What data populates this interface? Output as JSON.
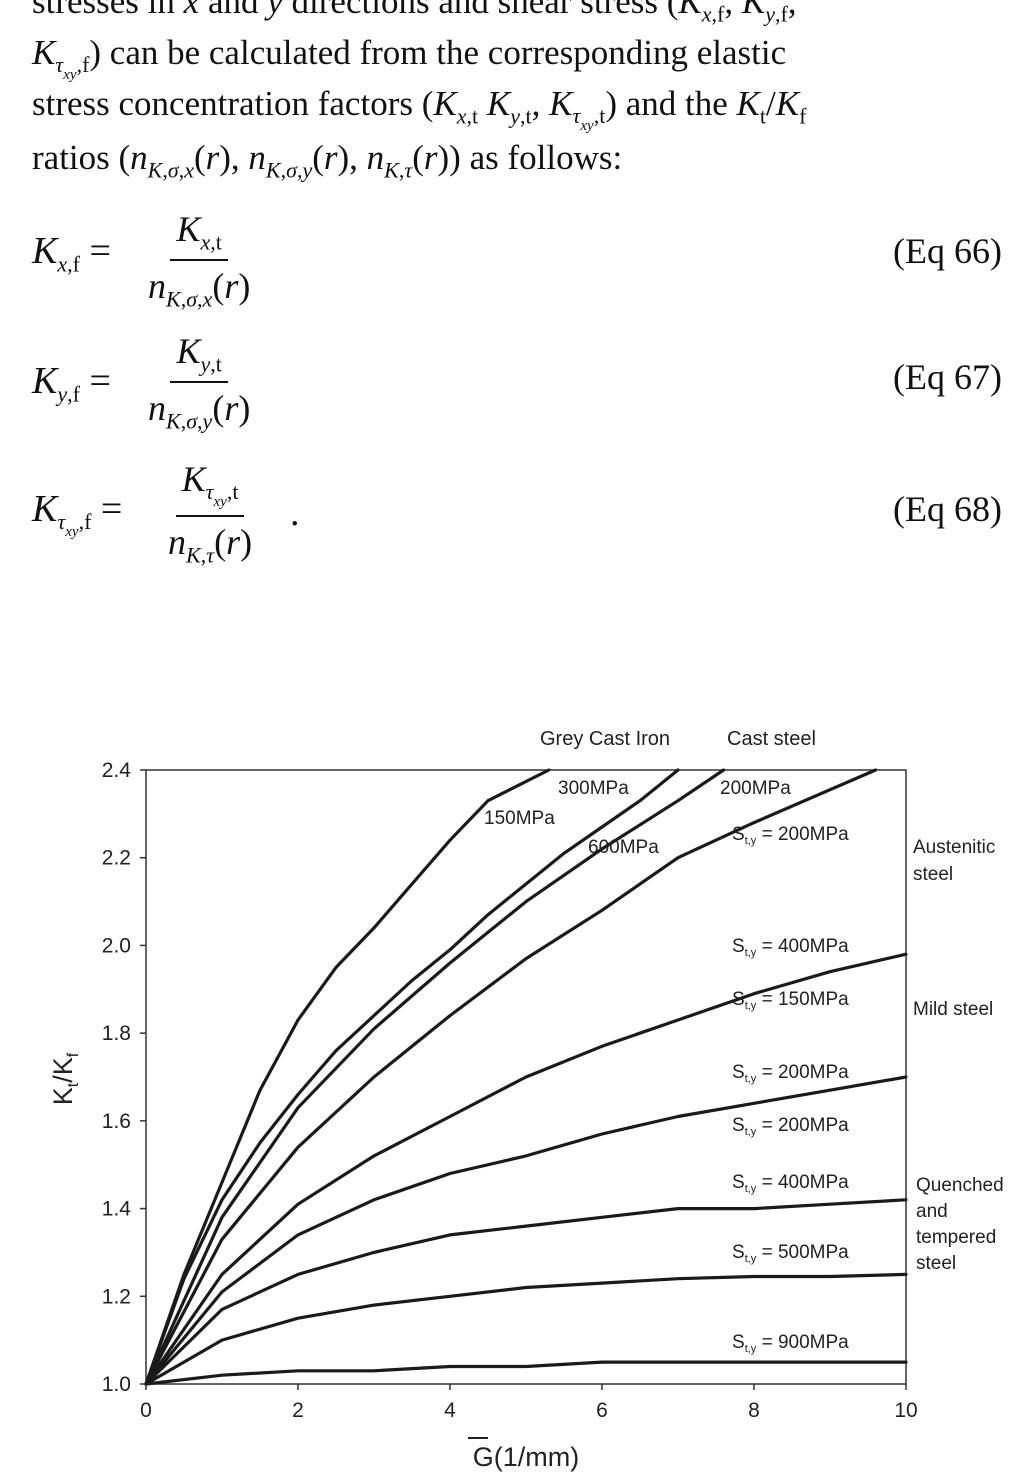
{
  "text": {
    "line1": "stresses in x and y directions and shear stress (Kx,f, Ky,f,",
    "line2": "Kτxy,f) can be calculated from the corresponding elastic",
    "line3": "stress concentration factors (Kx,t Ky,t, Kτxy,t) and the Kt/Kf",
    "line4": "ratios (nK,σ,x(r), nK,σ,y(r), nK,τ(r)) as follows:"
  },
  "equations": [
    {
      "lhs": "Kx,f =",
      "num": "Kx,t",
      "den": "nK,σ,x(r)",
      "label": "(Eq 66)"
    },
    {
      "lhs": "Ky,f =",
      "num": "Ky,t",
      "den": "nK,σ,y(r)",
      "label": "(Eq 67)"
    },
    {
      "lhs": "Kτxy,f =",
      "num": "Kτxy,t",
      "den": "nK,τ(r).",
      "label": "(Eq 68)"
    }
  ],
  "chart_data": {
    "type": "line",
    "title": "",
    "xlabel": "G(1/mm)",
    "ylabel": "Kt/Kf",
    "xlim": [
      0,
      10
    ],
    "ylim": [
      1.0,
      2.4
    ],
    "x_ticks": [
      0,
      2,
      4,
      6,
      8,
      10
    ],
    "y_ticks": [
      1.0,
      1.2,
      1.4,
      1.6,
      1.8,
      2.0,
      2.2,
      2.4
    ],
    "y_tick_labels": [
      "1.0",
      "1.2",
      "1.4",
      "1.6",
      "1.8",
      "2.0",
      "2.2",
      "2.4"
    ],
    "grid": false,
    "legend": "none",
    "line_color": "#1a1a1a",
    "group_labels": {
      "grey_cast_iron": "Grey Cast Iron",
      "cast_steel": "Cast steel",
      "austenitic_steel": "Austenitic steel",
      "mild_steel": "Mild steel",
      "quenched_tempered_steel": "Quenched and tempered steel"
    },
    "series": [
      {
        "name": "150MPa",
        "x": [
          0,
          0.5,
          1,
          1.5,
          2,
          2.5,
          3,
          3.5,
          4,
          4.5,
          5.3
        ],
        "y": [
          1.0,
          1.25,
          1.46,
          1.67,
          1.83,
          1.95,
          2.04,
          2.14,
          2.24,
          2.33,
          2.4
        ]
      },
      {
        "name": "300MPa",
        "x": [
          0,
          0.5,
          1,
          1.5,
          2,
          2.5,
          3,
          3.5,
          4,
          4.5,
          5,
          5.5,
          6,
          6.5,
          7.0
        ],
        "y": [
          1.0,
          1.24,
          1.42,
          1.55,
          1.66,
          1.76,
          1.84,
          1.92,
          1.99,
          2.07,
          2.14,
          2.21,
          2.27,
          2.33,
          2.4
        ]
      },
      {
        "name": "600MPa",
        "x": [
          0,
          1,
          2,
          3,
          4,
          5,
          6,
          7,
          7.6
        ],
        "y": [
          1.0,
          1.38,
          1.63,
          1.81,
          1.96,
          2.1,
          2.22,
          2.33,
          2.4
        ]
      },
      {
        "name": "Cast steel 200MPa",
        "x": [
          0,
          1,
          2,
          3,
          4,
          5,
          6,
          7,
          8,
          9.6
        ],
        "y": [
          1.0,
          1.33,
          1.54,
          1.7,
          1.84,
          1.97,
          2.08,
          2.2,
          2.28,
          2.4
        ]
      },
      {
        "name": "Sty=400MPa",
        "x": [
          0,
          1,
          2,
          3,
          4,
          5,
          6,
          7,
          8,
          9,
          10
        ],
        "y": [
          1.0,
          1.25,
          1.41,
          1.52,
          1.61,
          1.7,
          1.77,
          1.83,
          1.89,
          1.94,
          1.98
        ]
      },
      {
        "name": "Sty=200MPa (mild)",
        "x": [
          0,
          1,
          2,
          3,
          4,
          5,
          6,
          7,
          8,
          9,
          10
        ],
        "y": [
          1.0,
          1.21,
          1.34,
          1.42,
          1.48,
          1.52,
          1.57,
          1.61,
          1.64,
          1.67,
          1.7
        ]
      },
      {
        "name": "Sty=400MPa (Q&T)",
        "x": [
          0,
          1,
          2,
          3,
          4,
          5,
          6,
          7,
          8,
          9,
          10
        ],
        "y": [
          1.0,
          1.17,
          1.25,
          1.3,
          1.34,
          1.36,
          1.38,
          1.4,
          1.4,
          1.41,
          1.42
        ]
      },
      {
        "name": "Sty=500MPa",
        "x": [
          0,
          1,
          2,
          3,
          4,
          5,
          6,
          7,
          8,
          9,
          10
        ],
        "y": [
          1.0,
          1.1,
          1.15,
          1.18,
          1.2,
          1.22,
          1.23,
          1.24,
          1.245,
          1.245,
          1.25
        ]
      },
      {
        "name": "Sty=900MPa",
        "x": [
          0,
          1,
          2,
          3,
          4,
          5,
          6,
          7,
          8,
          9,
          10
        ],
        "y": [
          1.0,
          1.02,
          1.03,
          1.03,
          1.04,
          1.04,
          1.05,
          1.05,
          1.05,
          1.05,
          1.05
        ]
      }
    ],
    "annotations": [
      {
        "text": "Grey Cast Iron"
      },
      {
        "text": "Cast steel"
      },
      {
        "text": "300MPa"
      },
      {
        "text": "200MPa"
      },
      {
        "text": "150MPa"
      },
      {
        "text": "600MPa"
      },
      {
        "text": "Sty = 200MPa"
      },
      {
        "text": "Austenitic"
      },
      {
        "text": "steel"
      },
      {
        "text": "Sty = 400MPa"
      },
      {
        "text": "Sty = 150MPa"
      },
      {
        "text": "Mild steel"
      },
      {
        "text": "Sty = 200MPa"
      },
      {
        "text": "Sty = 200MPa"
      },
      {
        "text": "Sty = 400MPa"
      },
      {
        "text": "Quenched"
      },
      {
        "text": "and"
      },
      {
        "text": "tempered"
      },
      {
        "text": "steel"
      },
      {
        "text": "Sty = 500MPa"
      },
      {
        "text": "Sty = 900MPa"
      }
    ]
  }
}
